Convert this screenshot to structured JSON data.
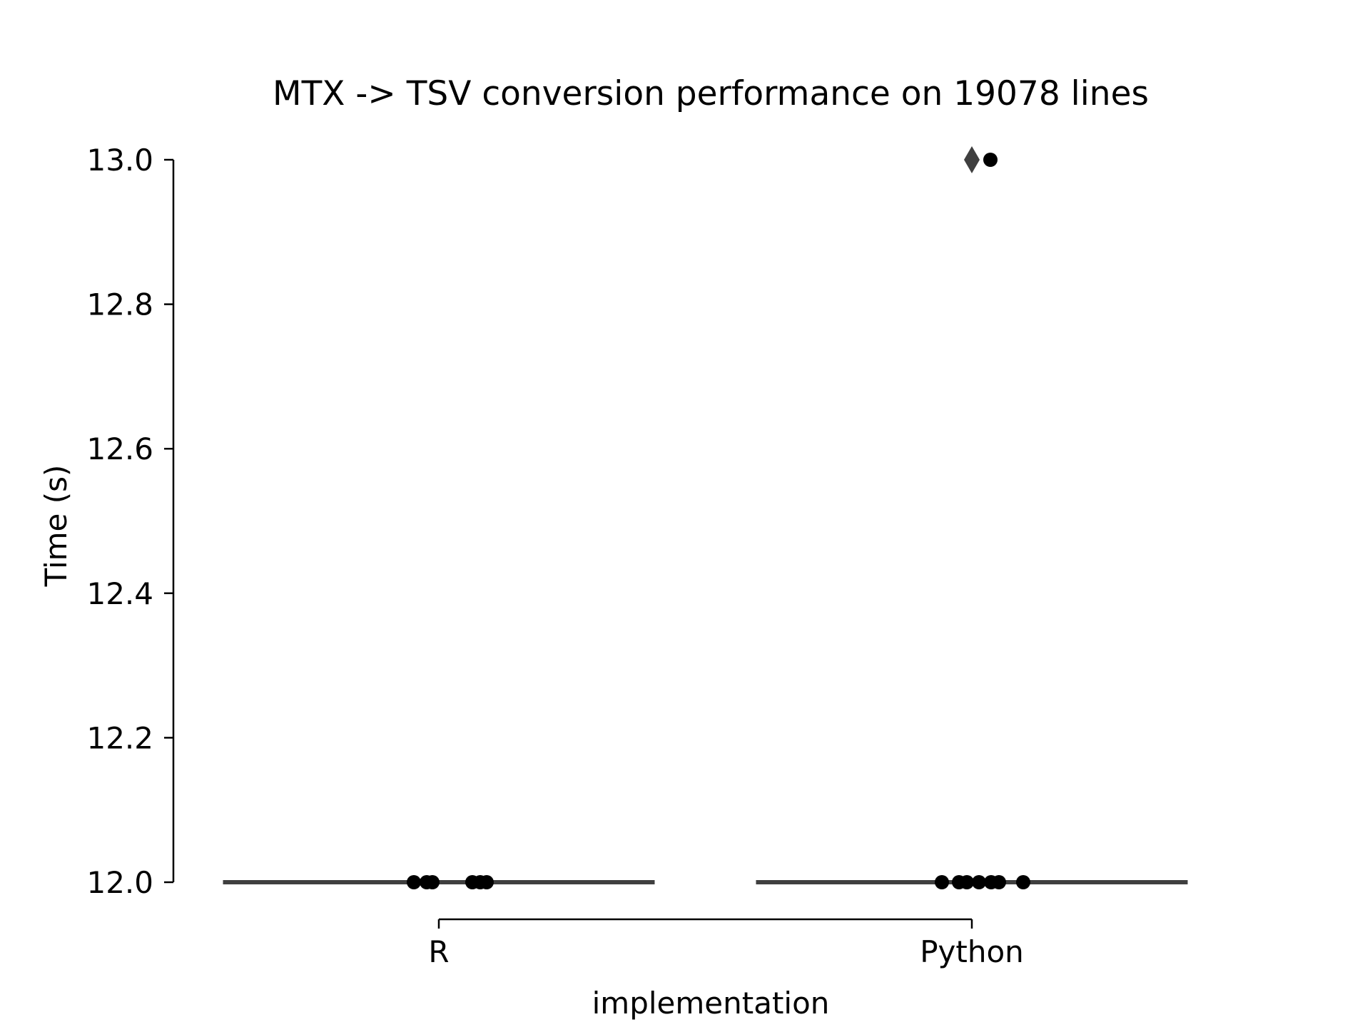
{
  "chart_data": {
    "type": "box+strip",
    "title": "MTX -> TSV conversion performance on 19078 lines",
    "xlabel": "implementation",
    "ylabel": "Time (s)",
    "categories": [
      "R",
      "Python"
    ],
    "ylim": [
      12.0,
      13.0
    ],
    "yticks": [
      12.0,
      12.2,
      12.4,
      12.6,
      12.8,
      13.0
    ],
    "ytick_labels": [
      "12.0",
      "12.2",
      "12.4",
      "12.6",
      "12.8",
      "13.0"
    ],
    "box_color": "#3f3f3f",
    "point_color": "#000000",
    "series": [
      {
        "category": "R",
        "box": {
          "q1": 12.0,
          "median": 12.0,
          "q3": 12.0,
          "whisker_low": 12.0,
          "whisker_high": 12.0
        },
        "outliers": [],
        "points": [
          12.0,
          12.0,
          12.0,
          12.0,
          12.0,
          12.0
        ]
      },
      {
        "category": "Python",
        "box": {
          "q1": 12.0,
          "median": 12.0,
          "q3": 12.0,
          "whisker_low": 12.0,
          "whisker_high": 12.0
        },
        "outliers": [
          13.0
        ],
        "points": [
          12.0,
          12.0,
          12.0,
          12.0,
          12.0,
          12.0,
          12.0,
          13.0
        ]
      }
    ],
    "grid": false,
    "spines": [
      "left",
      "bottom"
    ]
  }
}
